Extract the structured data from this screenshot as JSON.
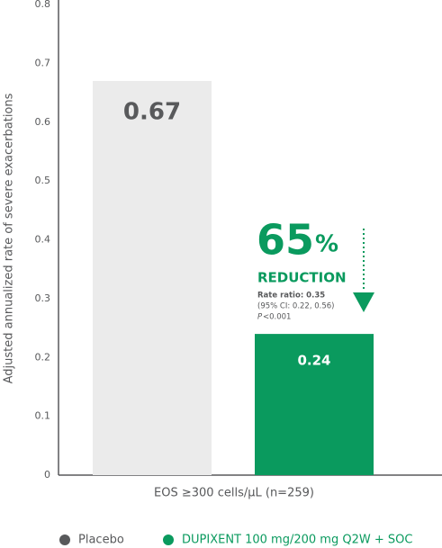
{
  "chart_data": {
    "type": "bar",
    "y_label": "Adjusted annualized rate of severe exacerbations",
    "categories": [
      "EOS ≥300 cells/μL (n=259)"
    ],
    "series": [
      {
        "name": "Placebo",
        "color": "#ebebeb",
        "legend_color": "#58595b",
        "label_color": "#58595b",
        "values": [
          0.67
        ]
      },
      {
        "name": "DUPIXENT 100 mg/200 mg Q2W + SOC",
        "color": "#0a9a5e",
        "legend_color": "#0a9a5e",
        "label_color": "#ffffff",
        "values": [
          0.24
        ]
      }
    ],
    "ylim": [
      0,
      0.8
    ],
    "yticks": [
      0,
      0.1,
      0.2,
      0.3,
      0.4,
      0.5,
      0.6,
      0.7,
      0.8
    ],
    "grid": false,
    "annotation": {
      "number": "65",
      "unit": "%",
      "headline": "REDUCTION",
      "rate_ratio": "Rate ratio: 0.35",
      "ci": "(95% CI: 0.22, 0.56)",
      "p_symbol": "P",
      "p_value": "<0.001"
    }
  }
}
